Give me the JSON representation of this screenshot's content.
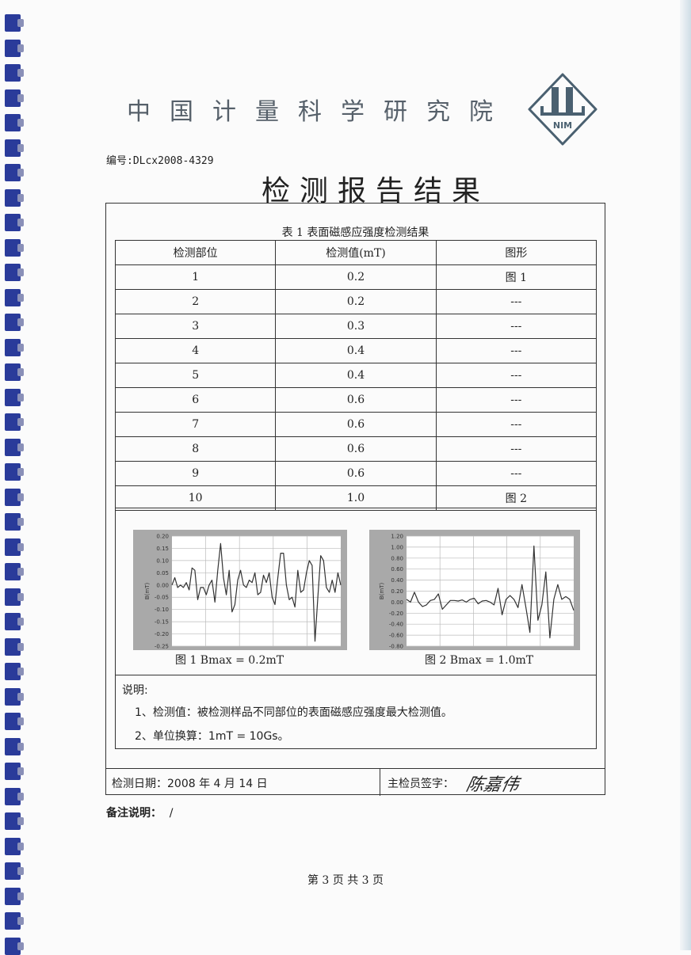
{
  "header": {
    "institute": "中国计量科学研究院",
    "logo_text": "NIM",
    "code_label": "编号:",
    "code": "DLcx2008-4329",
    "title": "检测报告结果"
  },
  "table": {
    "caption": "表 1 表面磁感应强度检测结果",
    "headers": [
      "检测部位",
      "检测值(mT)",
      "图形"
    ],
    "rows": [
      [
        "1",
        "0.2",
        "图 1"
      ],
      [
        "2",
        "0.2",
        "---"
      ],
      [
        "3",
        "0.3",
        "---"
      ],
      [
        "4",
        "0.4",
        "---"
      ],
      [
        "5",
        "0.4",
        "---"
      ],
      [
        "6",
        "0.6",
        "---"
      ],
      [
        "7",
        "0.6",
        "---"
      ],
      [
        "8",
        "0.6",
        "---"
      ],
      [
        "9",
        "0.6",
        "---"
      ],
      [
        "10",
        "1.0",
        "图 2"
      ]
    ]
  },
  "figures": [
    {
      "caption": "图 1    Bmax = 0.2mT"
    },
    {
      "caption": "图 2    Bmax = 1.0mT"
    }
  ],
  "chart_data": [
    {
      "type": "line",
      "ylabel": "B(mT)",
      "ylim": [
        -0.25,
        0.2
      ],
      "grid": true,
      "yticks": [
        "0.20",
        "0.15",
        "0.10",
        "0.05",
        "0.00",
        "-0.05",
        "-0.10",
        "-0.15",
        "-0.20",
        "-0.25"
      ],
      "values": [
        0,
        0.03,
        -0.01,
        0,
        -0.01,
        0.01,
        -0.02,
        0.07,
        0.06,
        -0.06,
        -0.01,
        -0.01,
        -0.04,
        0,
        0.02,
        -0.07,
        0.06,
        0.17,
        0.03,
        -0.04,
        0.06,
        -0.11,
        -0.08,
        0.02,
        0.06,
        0,
        -0.01,
        0.02,
        0.01,
        0.05,
        -0.04,
        -0.03,
        0.04,
        0.01,
        0.05,
        -0.05,
        -0.08,
        0.03,
        0.13,
        0.13,
        0,
        -0.06,
        -0.05,
        -0.09,
        0.06,
        -0.03,
        -0.02,
        0.05,
        0.1,
        0.08,
        -0.23,
        -0.05,
        0.12,
        0.1,
        -0.01,
        -0.03,
        0.02,
        -0.03,
        0.05,
        0
      ]
    },
    {
      "type": "line",
      "ylabel": "B(mT)",
      "ylim": [
        -0.8,
        1.2
      ],
      "grid": true,
      "yticks": [
        "1.20",
        "1.00",
        "0.80",
        "0.60",
        "0.40",
        "0.20",
        "0.00",
        "-0.20",
        "-0.40",
        "-0.60",
        "-0.80"
      ],
      "values": [
        0.05,
        0,
        0.18,
        0,
        -0.08,
        -0.05,
        0.03,
        0.05,
        0.15,
        -0.13,
        -0.05,
        0.03,
        0.03,
        0.02,
        0.04,
        0,
        0.05,
        0.07,
        -0.03,
        0.02,
        0.03,
        0,
        -0.05,
        0.25,
        -0.23,
        0.05,
        0.12,
        0.05,
        -0.1,
        0.32,
        -0.1,
        -0.55,
        1.02,
        -0.33,
        -0.05,
        0.55,
        -0.65,
        0.05,
        0.32,
        0.05,
        0.1,
        0.05,
        -0.15
      ]
    }
  ],
  "notes": {
    "heading": "说明:",
    "items": [
      "1、检测值：被检测样品不同部位的表面磁感应强度最大检测值。",
      "2、单位换算：1mT = 10Gs。"
    ]
  },
  "footer": {
    "date_label": "检测日期：",
    "date": "2008 年 4 月 14 日",
    "inspector_label": "主检员签字：",
    "signature": "陈嘉伟",
    "remarks_label": "备注说明：",
    "remarks": "/",
    "page": "第 3 页   共 3 页"
  },
  "colors": {
    "binding": "#2a3b9a",
    "logo": "#4a6070"
  }
}
